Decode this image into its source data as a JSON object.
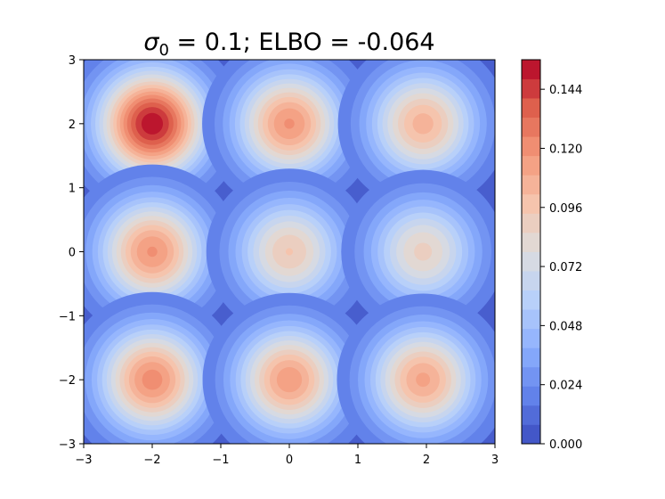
{
  "chart_data": {
    "type": "contour",
    "title": {
      "prefix": "σ",
      "subscript": "0",
      "suffix": " = 0.1; ELBO = -0.064"
    },
    "xlabel": "",
    "ylabel": "",
    "xlim": [
      -3,
      3
    ],
    "ylim": [
      -3,
      3
    ],
    "xticks": [
      -3,
      -2,
      -1,
      0,
      1,
      2,
      3
    ],
    "yticks": [
      -3,
      -2,
      -1,
      0,
      1,
      2,
      3
    ],
    "xtick_labels": [
      "−3",
      "−2",
      "−1",
      "0",
      "1",
      "2",
      "3"
    ],
    "ytick_labels": [
      "−3",
      "−2",
      "−1",
      "0",
      "1",
      "2",
      "3"
    ],
    "colormap": "coolwarm",
    "colorbar": {
      "min": 0.0,
      "max": 0.156,
      "levels": 20,
      "ticks": [
        0.0,
        0.024,
        0.048,
        0.072,
        0.096,
        0.12,
        0.144
      ],
      "tick_labels": [
        "0.000",
        "0.024",
        "0.048",
        "0.072",
        "0.096",
        "0.120",
        "0.144"
      ]
    },
    "peaks": [
      {
        "x": -2,
        "y": 2,
        "peak": 0.154
      },
      {
        "x": 0,
        "y": 2,
        "peak": 0.118
      },
      {
        "x": 1.95,
        "y": 2,
        "peak": 0.105
      },
      {
        "x": -2,
        "y": 0,
        "peak": 0.118
      },
      {
        "x": 0,
        "y": 0,
        "peak": 0.094
      },
      {
        "x": 1.95,
        "y": 0,
        "peak": 0.088
      },
      {
        "x": -2,
        "y": -2,
        "peak": 0.121
      },
      {
        "x": 0,
        "y": -2,
        "peak": 0.115
      },
      {
        "x": 1.95,
        "y": -2,
        "peak": 0.111
      }
    ],
    "background_level": 0.008,
    "grid": false
  }
}
